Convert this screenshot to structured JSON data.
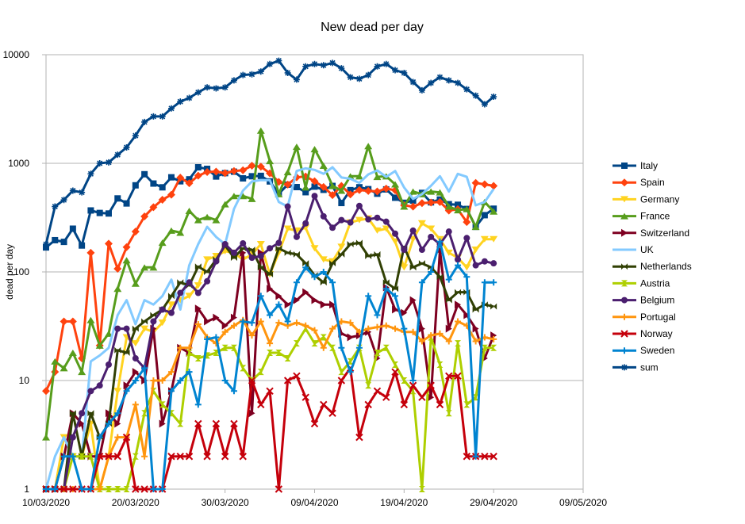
{
  "chart_data": {
    "type": "line",
    "title": "New dead per day",
    "xlabel": "",
    "ylabel": "dead per day",
    "yscale": "log",
    "ylim": [
      1,
      10000
    ],
    "yticks": [
      "1",
      "10",
      "100",
      "1000",
      "10000"
    ],
    "xticks": [
      "10/03/2020",
      "20/03/2020",
      "30/03/2020",
      "09/04/2020",
      "19/04/2020",
      "29/04/2020",
      "09/05/2020"
    ],
    "x_start": "10/03/2020",
    "x_range_days": 60,
    "grid": true,
    "legend": "right",
    "series": [
      {
        "name": "Italy",
        "color": "#004586",
        "marker": "square",
        "values": [
          168,
          196,
          189,
          250,
          175,
          368,
          349,
          345,
          475,
          427,
          627,
          793,
          651,
          601,
          743,
          683,
          712,
          919,
          889,
          756,
          812,
          837,
          727,
          760,
          766,
          681,
          525,
          636,
          604,
          542,
          610,
          570,
          619,
          431,
          566,
          602,
          578,
          525,
          575,
          482,
          433,
          454,
          534,
          437,
          464,
          420,
          415,
          380,
          260,
          333,
          382
        ]
      },
      {
        "name": "Spain",
        "color": "#ff420e",
        "marker": "diamond",
        "values": [
          8,
          12,
          35,
          35,
          16,
          150,
          21,
          182,
          107,
          169,
          235,
          324,
          394,
          462,
          514,
          738,
          655,
          769,
          832,
          838,
          812,
          849,
          864,
          950,
          932,
          809,
          674,
          637,
          743,
          757,
          683,
          605,
          510,
          619,
          517,
          567,
          557,
          551,
          585,
          565,
          410,
          399,
          430,
          435,
          440,
          367,
          378,
          288,
          660,
          640,
          620
        ]
      },
      {
        "name": "Germany",
        "color": "#ffd320",
        "marker": "tri-down",
        "values": [
          1,
          1,
          3,
          2,
          2,
          4,
          1,
          2,
          8,
          25,
          22,
          30,
          28,
          34,
          50,
          55,
          60,
          75,
          130,
          140,
          155,
          150,
          130,
          145,
          180,
          95,
          150,
          250,
          240,
          255,
          165,
          130,
          125,
          170,
          285,
          300,
          310,
          240,
          250,
          190,
          110,
          200,
          280,
          250,
          200,
          150,
          135,
          110,
          160,
          200,
          200
        ]
      },
      {
        "name": "France",
        "color": "#579d1c",
        "marker": "tri-up",
        "values": [
          3,
          15,
          13,
          18,
          12,
          36,
          21,
          27,
          70,
          128,
          78,
          110,
          110,
          186,
          240,
          230,
          365,
          300,
          320,
          300,
          420,
          500,
          500,
          470,
          2000,
          1050,
          520,
          830,
          1420,
          600,
          1350,
          950,
          620,
          560,
          760,
          760,
          1440,
          750,
          760,
          640,
          400,
          550,
          520,
          550,
          540,
          400,
          370,
          380,
          260,
          440,
          360
        ]
      },
      {
        "name": "Switzerland",
        "color": "#7e0021",
        "marker": "tri-right",
        "values": [
          1,
          1,
          2,
          5,
          4,
          2,
          2,
          5,
          4,
          9,
          12,
          10,
          30,
          4,
          8,
          20,
          18,
          46,
          35,
          38,
          32,
          38,
          150,
          5,
          150,
          70,
          60,
          50,
          55,
          65,
          55,
          50,
          50,
          27,
          25,
          26,
          28,
          16,
          72,
          45,
          42,
          55,
          30,
          7,
          160,
          30,
          50,
          40,
          30,
          16,
          26
        ]
      },
      {
        "name": "UK",
        "color": "#83caff",
        "marker": "none",
        "values": [
          1,
          2,
          3,
          2,
          2,
          15,
          17,
          20,
          40,
          55,
          33,
          55,
          50,
          60,
          85,
          45,
          115,
          180,
          260,
          210,
          180,
          380,
          560,
          680,
          700,
          700,
          440,
          400,
          850,
          900,
          870,
          800,
          920,
          740,
          720,
          660,
          790,
          860,
          750,
          850,
          600,
          470,
          520,
          620,
          760,
          550,
          800,
          750,
          410,
          440,
          580
        ]
      },
      {
        "name": "Netherlands",
        "color": "#314004",
        "marker": "bowtie",
        "values": [
          1,
          1,
          1,
          5,
          2,
          5,
          3,
          4,
          19,
          18,
          30,
          35,
          40,
          45,
          60,
          80,
          75,
          112,
          100,
          130,
          175,
          135,
          165,
          160,
          110,
          95,
          165,
          150,
          145,
          120,
          93,
          80,
          120,
          145,
          180,
          185,
          140,
          145,
          80,
          70,
          170,
          110,
          120,
          110,
          90,
          55,
          65,
          65,
          45,
          50,
          48
        ]
      },
      {
        "name": "Austria",
        "color": "#aecf00",
        "marker": "hourglass",
        "values": [
          1,
          1,
          1,
          2,
          2,
          2,
          1,
          1,
          1,
          1,
          2,
          5,
          8,
          6,
          5,
          4,
          18,
          16,
          17,
          18,
          20,
          20,
          13,
          10,
          12,
          18,
          18,
          16,
          22,
          30,
          22,
          25,
          20,
          12,
          15,
          20,
          9,
          18,
          20,
          14,
          10,
          8,
          1,
          25,
          14,
          5,
          22,
          6,
          7,
          20,
          20
        ]
      },
      {
        "name": "Belgium",
        "color": "#4b1f6f",
        "marker": "circle",
        "values": [
          1,
          1,
          1,
          3,
          5,
          8,
          9,
          14,
          30,
          30,
          16,
          13,
          35,
          45,
          42,
          64,
          80,
          64,
          82,
          125,
          180,
          150,
          183,
          135,
          140,
          165,
          185,
          400,
          210,
          280,
          500,
          325,
          255,
          300,
          285,
          405,
          305,
          315,
          290,
          225,
          160,
          240,
          160,
          210,
          180,
          235,
          130,
          205,
          115,
          125,
          120
        ]
      },
      {
        "name": "Portugal",
        "color": "#ff950e",
        "marker": "plus",
        "values": [
          1,
          1,
          1,
          1,
          1,
          1,
          1,
          2,
          3,
          3,
          6,
          2,
          10,
          10,
          12,
          20,
          20,
          33,
          25,
          22,
          28,
          32,
          36,
          26,
          35,
          22,
          34,
          32,
          34,
          32,
          29,
          20,
          30,
          35,
          34,
          28,
          30,
          31,
          32,
          30,
          28,
          28,
          23,
          26,
          27,
          23,
          35,
          32,
          23,
          25,
          24
        ]
      },
      {
        "name": "Norway",
        "color": "#c5000b",
        "marker": "x",
        "values": [
          1,
          1,
          1,
          1,
          1,
          1,
          2,
          2,
          2,
          3,
          1,
          1,
          1,
          1,
          2,
          2,
          2,
          4,
          2,
          4,
          2,
          4,
          2,
          10,
          6,
          8,
          1,
          10,
          11,
          7,
          4,
          6,
          5,
          10,
          13,
          3,
          6,
          8,
          7,
          12,
          6,
          9,
          7,
          9,
          6,
          11,
          11,
          2,
          2,
          2,
          2
        ]
      },
      {
        "name": "Sweden",
        "color": "#0084d1",
        "marker": "plus",
        "values": [
          1,
          1,
          2,
          2,
          1,
          1,
          3,
          4,
          5,
          8,
          10,
          13,
          1,
          1,
          8,
          10,
          12,
          6,
          24,
          25,
          10,
          8,
          35,
          34,
          60,
          40,
          50,
          35,
          80,
          110,
          90,
          100,
          80,
          20,
          12,
          20,
          60,
          40,
          70,
          60,
          30,
          10,
          80,
          100,
          190,
          85,
          115,
          90,
          2,
          80,
          80
        ]
      },
      {
        "name": "sum",
        "color": "#004586",
        "marker": "asterisk",
        "values": [
          180,
          400,
          460,
          560,
          540,
          800,
          1000,
          1020,
          1200,
          1400,
          1800,
          2400,
          2700,
          2700,
          3200,
          3700,
          4000,
          4500,
          5000,
          4900,
          5000,
          5800,
          6500,
          6600,
          7000,
          8200,
          8800,
          6800,
          5900,
          7800,
          8200,
          8000,
          8400,
          7500,
          6200,
          6000,
          6500,
          7800,
          8200,
          7200,
          6800,
          5600,
          4700,
          5500,
          6200,
          5800,
          5500,
          4800,
          4200,
          3500,
          4100
        ]
      }
    ]
  }
}
